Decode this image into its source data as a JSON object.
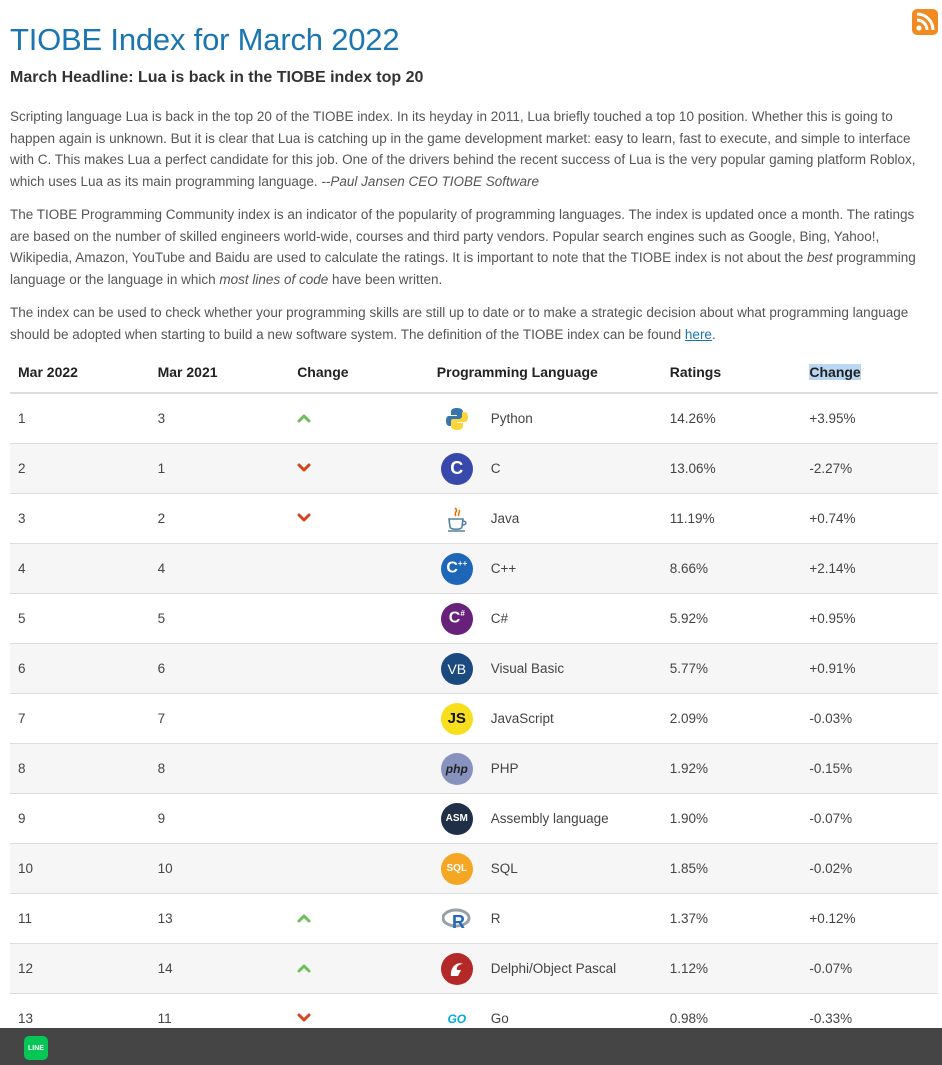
{
  "page": {
    "title": "TIOBE Index for March 2022",
    "headline": "March Headline: Lua is back in the TIOBE index top 20",
    "p1_text": "Scripting language Lua is back in the top 20 of the TIOBE index. In its heyday in 2011, Lua briefly touched a top 10 position. Whether this is going to happen again is unknown. But it is clear that Lua is catching up in the game development market: easy to learn, fast to execute, and simple to interface with C. This makes Lua a perfect candidate for this job. One of the drivers behind the recent success of Lua is the very popular gaming platform Roblox, which uses Lua as its main programming language. ",
    "p1_quote": "--Paul Jansen CEO TIOBE Software",
    "p2_a": "The TIOBE Programming Community index is an indicator of the popularity of programming languages. The index is updated once a month. The ratings are based on the number of skilled engineers world-wide, courses and third party vendors. Popular search engines such as Google, Bing, Yahoo!, Wikipedia, Amazon, YouTube and Baidu are used to calculate the ratings. It is important to note that the TIOBE index is not about the ",
    "p2_em1": "best",
    "p2_b": " programming language or the language in which ",
    "p2_em2": "most lines of code",
    "p2_c": " have been written.",
    "p3_text": "The index can be used to check whether your programming skills are still up to date or to make a strategic decision about what programming language should be adopted when starting to build a new software system. The definition of the TIOBE index can be found ",
    "p3_link": "here",
    "p3_end": "."
  },
  "table": {
    "headers": [
      "Mar 2022",
      "Mar 2021",
      "Change",
      "Programming Language",
      "Ratings",
      "Change"
    ],
    "rows": [
      {
        "cur": "1",
        "prev": "3",
        "trend": "up",
        "lang": "Python",
        "rating": "14.26%",
        "change": "+3.95%",
        "logo": "python-logo-icon"
      },
      {
        "cur": "2",
        "prev": "1",
        "trend": "down",
        "lang": "C",
        "rating": "13.06%",
        "change": "-2.27%",
        "logo": "c-logo-icon"
      },
      {
        "cur": "3",
        "prev": "2",
        "trend": "down",
        "lang": "Java",
        "rating": "11.19%",
        "change": "+0.74%",
        "logo": "java-logo-icon"
      },
      {
        "cur": "4",
        "prev": "4",
        "trend": "none",
        "lang": "C++",
        "rating": "8.66%",
        "change": "+2.14%",
        "logo": "cpp-logo-icon"
      },
      {
        "cur": "5",
        "prev": "5",
        "trend": "none",
        "lang": "C#",
        "rating": "5.92%",
        "change": "+0.95%",
        "logo": "csharp-logo-icon"
      },
      {
        "cur": "6",
        "prev": "6",
        "trend": "none",
        "lang": "Visual Basic",
        "rating": "5.77%",
        "change": "+0.91%",
        "logo": "vb-logo-icon",
        "logo_text": "VB"
      },
      {
        "cur": "7",
        "prev": "7",
        "trend": "none",
        "lang": "JavaScript",
        "rating": "2.09%",
        "change": "-0.03%",
        "logo": "js-logo-icon",
        "logo_text": "JS"
      },
      {
        "cur": "8",
        "prev": "8",
        "trend": "none",
        "lang": "PHP",
        "rating": "1.92%",
        "change": "-0.15%",
        "logo": "php-logo-icon",
        "logo_text": "php"
      },
      {
        "cur": "9",
        "prev": "9",
        "trend": "none",
        "lang": "Assembly language",
        "rating": "1.90%",
        "change": "-0.07%",
        "logo": "asm-logo-icon",
        "logo_text": "ASM"
      },
      {
        "cur": "10",
        "prev": "10",
        "trend": "none",
        "lang": "SQL",
        "rating": "1.85%",
        "change": "-0.02%",
        "logo": "sql-logo-icon",
        "logo_text": "SQL"
      },
      {
        "cur": "11",
        "prev": "13",
        "trend": "up",
        "lang": "R",
        "rating": "1.37%",
        "change": "+0.12%",
        "logo": "r-logo-icon"
      },
      {
        "cur": "12",
        "prev": "14",
        "trend": "up",
        "lang": "Delphi/Object Pascal",
        "rating": "1.12%",
        "change": "-0.07%",
        "logo": "delphi-logo-icon"
      },
      {
        "cur": "13",
        "prev": "11",
        "trend": "down",
        "lang": "Go",
        "rating": "0.98%",
        "change": "-0.33%",
        "logo": "go-logo-icon",
        "logo_text": "GO"
      }
    ]
  },
  "colors": {
    "title": "#1a75b0",
    "up": "#6cbf5a",
    "down": "#d9431c",
    "rss": "#f18a21",
    "footer": "#454545",
    "line": "#06c755"
  },
  "footer": {
    "line_label": "LINE"
  }
}
